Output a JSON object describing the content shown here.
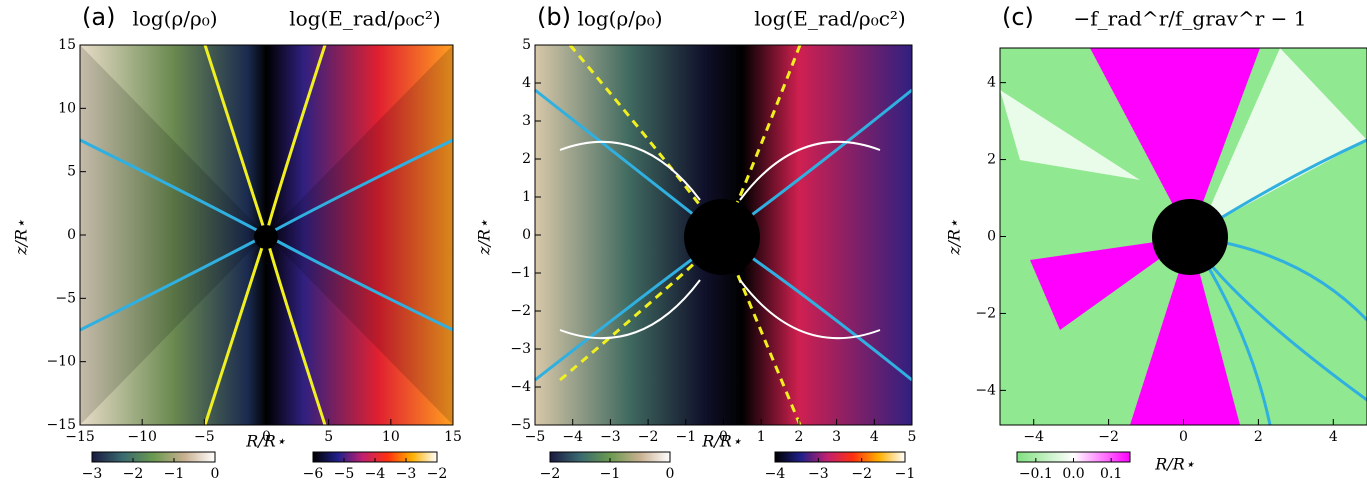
{
  "chart_data": [
    {
      "type": "heatmap",
      "panel_label": "(a)",
      "titles": [
        "log(ρ/ρ₀)",
        "log(E_rad/ρ₀c²)"
      ],
      "xlabel": "R/R⋆",
      "ylabel": "z/R⋆",
      "xlim": [
        -15,
        15
      ],
      "ylim": [
        -15,
        15
      ],
      "xticks": [
        {
          "value": -15,
          "label": "−15"
        },
        {
          "value": -10,
          "label": "−10"
        },
        {
          "value": -5,
          "label": "−5"
        },
        0,
        5,
        10,
        15
      ],
      "yticks": [
        {
          "value": -15,
          "label": "−15"
        },
        {
          "value": -10,
          "label": "−10"
        },
        {
          "value": -5,
          "label": "−5"
        },
        0,
        5,
        10,
        15
      ],
      "colorbars": [
        {
          "lim": [
            -3,
            0
          ],
          "ticks": [
            {
              "value": -3,
              "label": "−3"
            },
            {
              "value": -2,
              "label": "−2"
            },
            {
              "value": -1,
              "label": "−1"
            },
            0
          ],
          "colors": [
            "#1a1a40",
            "#3a6a70",
            "#6a9a50",
            "#c8b090",
            "#ffffff"
          ]
        },
        {
          "lim": [
            -6,
            -2
          ],
          "ticks": [
            {
              "value": -6,
              "label": "−6"
            },
            {
              "value": -5,
              "label": "−5"
            },
            {
              "value": -4,
              "label": "−4"
            },
            {
              "value": -3,
              "label": "−3"
            },
            {
              "value": -2,
              "label": "−2"
            }
          ],
          "colors": [
            "#000000",
            "#20208a",
            "#c02070",
            "#ff3010",
            "#ffb000",
            "#ffffff"
          ]
        }
      ]
    },
    {
      "type": "heatmap",
      "panel_label": "(b)",
      "titles": [
        "log(ρ/ρ₀)",
        "log(E_rad/ρ₀c²)"
      ],
      "xlabel": "R/R⋆",
      "ylabel": "z/R⋆",
      "xlim": [
        -5,
        5
      ],
      "ylim": [
        -5,
        5
      ],
      "xticks": [
        {
          "value": -5,
          "label": "−5"
        },
        {
          "value": -4,
          "label": "−4"
        },
        {
          "value": -3,
          "label": "−3"
        },
        {
          "value": -2,
          "label": "−2"
        },
        {
          "value": -1,
          "label": "−1"
        },
        0,
        1,
        2,
        3,
        4,
        5
      ],
      "yticks": [
        {
          "value": -5,
          "label": "−5"
        },
        {
          "value": -4,
          "label": "−4"
        },
        {
          "value": -3,
          "label": "−3"
        },
        {
          "value": -2,
          "label": "−2"
        },
        {
          "value": -1,
          "label": "−1"
        },
        0,
        1,
        2,
        3,
        4,
        5
      ],
      "colorbars": [
        {
          "lim": [
            -2,
            0
          ],
          "ticks": [
            {
              "value": -2,
              "label": "−2"
            },
            {
              "value": -1,
              "label": "−1"
            },
            0
          ],
          "colors": [
            "#1a1a40",
            "#3a6a70",
            "#6a9a50",
            "#c8b090",
            "#ffffff"
          ]
        },
        {
          "lim": [
            -4,
            -1
          ],
          "ticks": [
            {
              "value": -4,
              "label": "−4"
            },
            {
              "value": -3,
              "label": "−3"
            },
            {
              "value": -2,
              "label": "−2"
            },
            {
              "value": -1,
              "label": "−1"
            }
          ],
          "colors": [
            "#000000",
            "#20208a",
            "#c02070",
            "#ff3010",
            "#ffb000",
            "#ffffff"
          ]
        }
      ]
    },
    {
      "type": "heatmap",
      "panel_label": "(c)",
      "titles": [
        "−f_rad^r/f_grav^r − 1"
      ],
      "xlabel": "R/R⋆",
      "ylabel": "z/R⋆",
      "xlim": [
        -4.9,
        4.9
      ],
      "ylim": [
        -4.9,
        4.9
      ],
      "xticks": [
        {
          "value": -4,
          "label": "−4"
        },
        {
          "value": -2,
          "label": "−2"
        },
        0,
        2,
        4
      ],
      "yticks": [
        {
          "value": -4,
          "label": "−4"
        },
        {
          "value": -2,
          "label": "−2"
        },
        0,
        2,
        4
      ],
      "colorbars": [
        {
          "lim": [
            -0.15,
            0.15
          ],
          "ticks": [
            {
              "value": -0.1,
              "label": "−0.1"
            },
            {
              "value": 0,
              "label": "0.0"
            },
            {
              "value": 0.1,
              "label": "0.1"
            }
          ],
          "colors": [
            "#80e080",
            "#ffffff",
            "#ff00ff"
          ]
        }
      ]
    }
  ]
}
